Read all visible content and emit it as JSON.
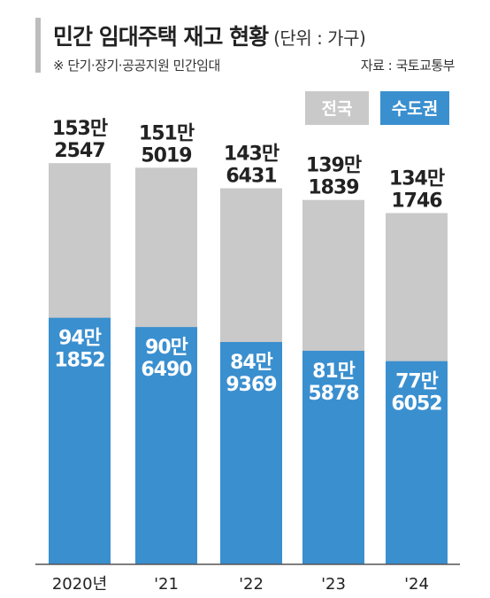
{
  "header": {
    "title": "민간 임대주택 재고 현황",
    "unit": "(단위 : 가구)",
    "note": "※ 단기·장기·공공지원 민간임대",
    "source": "자료 : 국토교통부"
  },
  "chart_data": {
    "type": "bar",
    "categories": [
      "2020년",
      "'21",
      "'22",
      "'23",
      "'24"
    ],
    "series": [
      {
        "name": "전국",
        "values": [
          1532547,
          1515019,
          1436431,
          1391839,
          1341746
        ],
        "labels": [
          [
            "153만",
            "2547"
          ],
          [
            "151만",
            "5019"
          ],
          [
            "143만",
            "6431"
          ],
          [
            "139만",
            "1839"
          ],
          [
            "134만",
            "1746"
          ]
        ],
        "color": "#c9c9c9"
      },
      {
        "name": "수도권",
        "values": [
          941852,
          906490,
          849369,
          815878,
          776052
        ],
        "labels": [
          [
            "94만",
            "1852"
          ],
          [
            "90만",
            "6490"
          ],
          [
            "84만",
            "9369"
          ],
          [
            "81만",
            "5878"
          ],
          [
            "77만",
            "6052"
          ]
        ],
        "color": "#3a8fcf"
      }
    ],
    "legend": "top-right",
    "grid": false,
    "overlap": true
  }
}
